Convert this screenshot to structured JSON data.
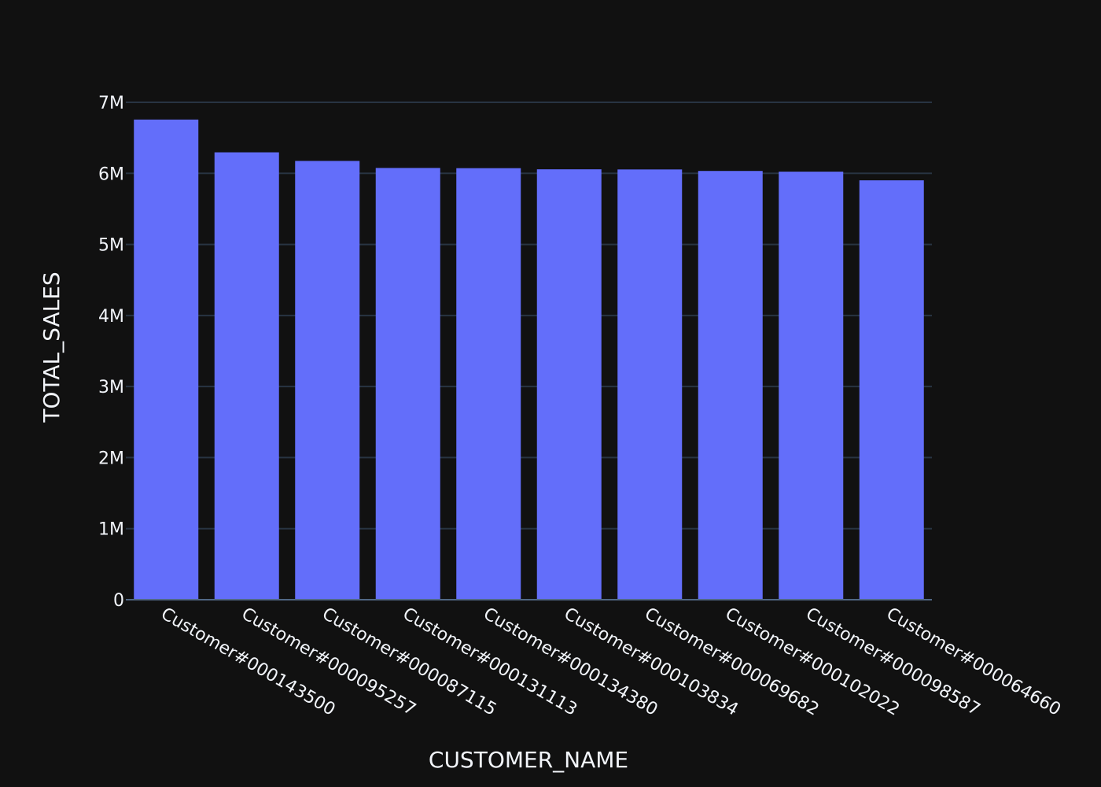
{
  "chart_data": {
    "type": "bar",
    "title": "",
    "xlabel": "CUSTOMER_NAME",
    "ylabel": "TOTAL_SALES",
    "categories": [
      "Customer#000143500",
      "Customer#000095257",
      "Customer#000087115",
      "Customer#000131113",
      "Customer#000134380",
      "Customer#000103834",
      "Customer#000069682",
      "Customer#000102022",
      "Customer#000098587",
      "Customer#000064660"
    ],
    "values": [
      6757000,
      6296000,
      6175000,
      6076000,
      6073000,
      6057000,
      6055000,
      6034000,
      6024000,
      5902000
    ],
    "ylim": [
      0,
      7000000
    ],
    "yticks": [
      0,
      1000000,
      2000000,
      3000000,
      4000000,
      5000000,
      6000000,
      7000000
    ],
    "ytick_labels": [
      "0",
      "1M",
      "2M",
      "3M",
      "4M",
      "5M",
      "6M",
      "7M"
    ],
    "grid": true,
    "legend": "none",
    "colors": {
      "background": "#111111",
      "bar": "#636efa",
      "grid": "#283442",
      "axis": "#506784",
      "text": "#f2f5fa"
    }
  }
}
